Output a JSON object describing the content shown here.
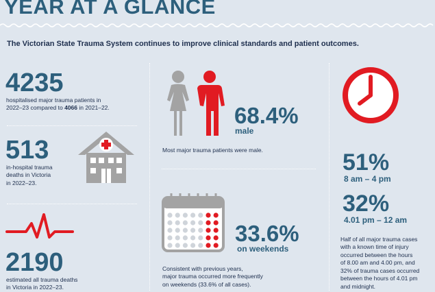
{
  "title": "YEAR AT A GLANCE",
  "intro": "The Victorian State Trauma System continues to improve clinical standards and patient outcomes.",
  "colors": {
    "accent": "#e11b22",
    "heading": "#2d5f7c",
    "text": "#1e2f4e",
    "icon_grey": "#a3a3a3",
    "background": "#dfe6ee"
  },
  "stats": {
    "hospitalised": {
      "number": "4235",
      "text1": "hospitalised major trauma patients in",
      "text2_prefix": "2022–23 compared to ",
      "text2_bold": "4066",
      "text2_suffix": " in 2021–22."
    },
    "deaths_in_hospital": {
      "number": "513",
      "line1": "in-hospital trauma",
      "line2": "deaths in Victoria",
      "line3": "in 2022–23.",
      "icon": "hospital-icon"
    },
    "all_deaths": {
      "number": "2190",
      "line1": "estimated all trauma deaths",
      "line2": "in Victoria in 2022–23.",
      "icon": "heartbeat-icon"
    },
    "male": {
      "percent": "68.4%",
      "label": "male",
      "caption": "Most major trauma patients were male.",
      "icon": "people-icon"
    },
    "weekends": {
      "percent": "33.6%",
      "label": "on weekends",
      "line1": "Consistent with previous years,",
      "line2": "major trauma occurred more frequently",
      "line3": "on weekends (33.6% of all cases).",
      "icon": "calendar-icon"
    },
    "time": {
      "percent1": "51%",
      "range1": "8 am – 4 pm",
      "percent2": "32%",
      "range2": "4.01 pm – 12 am",
      "icon": "clock-icon",
      "lines": [
        "Half of all major trauma cases",
        "with a known time of injury",
        "occurred between the hours",
        "of 8.00 am and 4.00 pm, and",
        "32% of trauma cases occurred",
        "between the hours of 4.01 pm",
        "and midnight."
      ]
    }
  }
}
